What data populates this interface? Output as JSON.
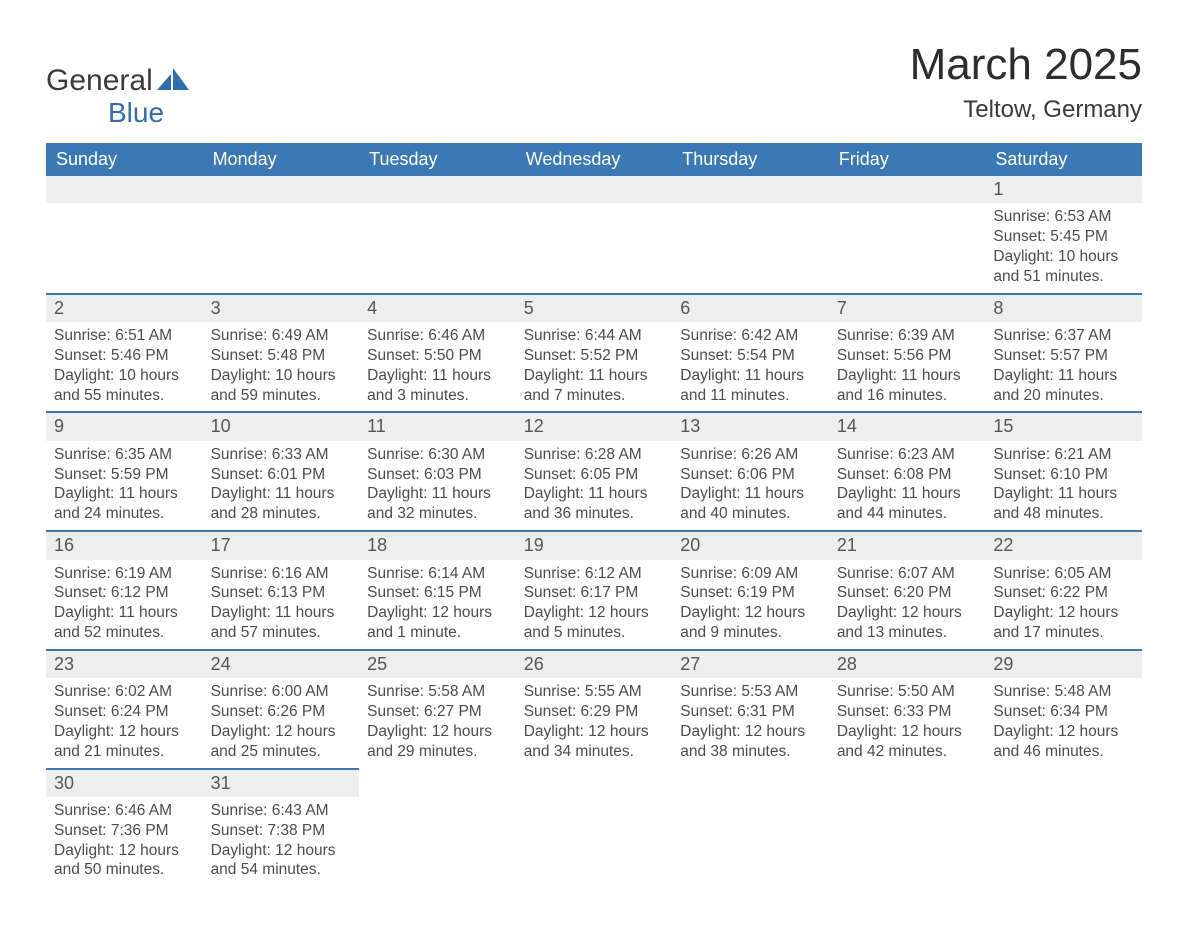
{
  "logo": {
    "word1": "General",
    "word2": "Blue"
  },
  "title": "March 2025",
  "location": "Teltow, Germany",
  "colors": {
    "header_bg": "#3b78b5",
    "header_text": "#ffffff",
    "daynum_bg": "#eeeeee",
    "row_divider": "#3b78b5",
    "body_text": "#4d4d4d",
    "page_bg": "#ffffff",
    "logo_blue": "#2f6fb0"
  },
  "typography": {
    "title_fontsize": 44,
    "location_fontsize": 24,
    "th_fontsize": 18,
    "cell_fontsize": 15.5
  },
  "columns": [
    "Sunday",
    "Monday",
    "Tuesday",
    "Wednesday",
    "Thursday",
    "Friday",
    "Saturday"
  ],
  "weeks": [
    [
      null,
      null,
      null,
      null,
      null,
      null,
      {
        "n": "1",
        "sunrise": "Sunrise: 6:53 AM",
        "sunset": "Sunset: 5:45 PM",
        "day1": "Daylight: 10 hours",
        "day2": "and 51 minutes."
      }
    ],
    [
      {
        "n": "2",
        "sunrise": "Sunrise: 6:51 AM",
        "sunset": "Sunset: 5:46 PM",
        "day1": "Daylight: 10 hours",
        "day2": "and 55 minutes."
      },
      {
        "n": "3",
        "sunrise": "Sunrise: 6:49 AM",
        "sunset": "Sunset: 5:48 PM",
        "day1": "Daylight: 10 hours",
        "day2": "and 59 minutes."
      },
      {
        "n": "4",
        "sunrise": "Sunrise: 6:46 AM",
        "sunset": "Sunset: 5:50 PM",
        "day1": "Daylight: 11 hours",
        "day2": "and 3 minutes."
      },
      {
        "n": "5",
        "sunrise": "Sunrise: 6:44 AM",
        "sunset": "Sunset: 5:52 PM",
        "day1": "Daylight: 11 hours",
        "day2": "and 7 minutes."
      },
      {
        "n": "6",
        "sunrise": "Sunrise: 6:42 AM",
        "sunset": "Sunset: 5:54 PM",
        "day1": "Daylight: 11 hours",
        "day2": "and 11 minutes."
      },
      {
        "n": "7",
        "sunrise": "Sunrise: 6:39 AM",
        "sunset": "Sunset: 5:56 PM",
        "day1": "Daylight: 11 hours",
        "day2": "and 16 minutes."
      },
      {
        "n": "8",
        "sunrise": "Sunrise: 6:37 AM",
        "sunset": "Sunset: 5:57 PM",
        "day1": "Daylight: 11 hours",
        "day2": "and 20 minutes."
      }
    ],
    [
      {
        "n": "9",
        "sunrise": "Sunrise: 6:35 AM",
        "sunset": "Sunset: 5:59 PM",
        "day1": "Daylight: 11 hours",
        "day2": "and 24 minutes."
      },
      {
        "n": "10",
        "sunrise": "Sunrise: 6:33 AM",
        "sunset": "Sunset: 6:01 PM",
        "day1": "Daylight: 11 hours",
        "day2": "and 28 minutes."
      },
      {
        "n": "11",
        "sunrise": "Sunrise: 6:30 AM",
        "sunset": "Sunset: 6:03 PM",
        "day1": "Daylight: 11 hours",
        "day2": "and 32 minutes."
      },
      {
        "n": "12",
        "sunrise": "Sunrise: 6:28 AM",
        "sunset": "Sunset: 6:05 PM",
        "day1": "Daylight: 11 hours",
        "day2": "and 36 minutes."
      },
      {
        "n": "13",
        "sunrise": "Sunrise: 6:26 AM",
        "sunset": "Sunset: 6:06 PM",
        "day1": "Daylight: 11 hours",
        "day2": "and 40 minutes."
      },
      {
        "n": "14",
        "sunrise": "Sunrise: 6:23 AM",
        "sunset": "Sunset: 6:08 PM",
        "day1": "Daylight: 11 hours",
        "day2": "and 44 minutes."
      },
      {
        "n": "15",
        "sunrise": "Sunrise: 6:21 AM",
        "sunset": "Sunset: 6:10 PM",
        "day1": "Daylight: 11 hours",
        "day2": "and 48 minutes."
      }
    ],
    [
      {
        "n": "16",
        "sunrise": "Sunrise: 6:19 AM",
        "sunset": "Sunset: 6:12 PM",
        "day1": "Daylight: 11 hours",
        "day2": "and 52 minutes."
      },
      {
        "n": "17",
        "sunrise": "Sunrise: 6:16 AM",
        "sunset": "Sunset: 6:13 PM",
        "day1": "Daylight: 11 hours",
        "day2": "and 57 minutes."
      },
      {
        "n": "18",
        "sunrise": "Sunrise: 6:14 AM",
        "sunset": "Sunset: 6:15 PM",
        "day1": "Daylight: 12 hours",
        "day2": "and 1 minute."
      },
      {
        "n": "19",
        "sunrise": "Sunrise: 6:12 AM",
        "sunset": "Sunset: 6:17 PM",
        "day1": "Daylight: 12 hours",
        "day2": "and 5 minutes."
      },
      {
        "n": "20",
        "sunrise": "Sunrise: 6:09 AM",
        "sunset": "Sunset: 6:19 PM",
        "day1": "Daylight: 12 hours",
        "day2": "and 9 minutes."
      },
      {
        "n": "21",
        "sunrise": "Sunrise: 6:07 AM",
        "sunset": "Sunset: 6:20 PM",
        "day1": "Daylight: 12 hours",
        "day2": "and 13 minutes."
      },
      {
        "n": "22",
        "sunrise": "Sunrise: 6:05 AM",
        "sunset": "Sunset: 6:22 PM",
        "day1": "Daylight: 12 hours",
        "day2": "and 17 minutes."
      }
    ],
    [
      {
        "n": "23",
        "sunrise": "Sunrise: 6:02 AM",
        "sunset": "Sunset: 6:24 PM",
        "day1": "Daylight: 12 hours",
        "day2": "and 21 minutes."
      },
      {
        "n": "24",
        "sunrise": "Sunrise: 6:00 AM",
        "sunset": "Sunset: 6:26 PM",
        "day1": "Daylight: 12 hours",
        "day2": "and 25 minutes."
      },
      {
        "n": "25",
        "sunrise": "Sunrise: 5:58 AM",
        "sunset": "Sunset: 6:27 PM",
        "day1": "Daylight: 12 hours",
        "day2": "and 29 minutes."
      },
      {
        "n": "26",
        "sunrise": "Sunrise: 5:55 AM",
        "sunset": "Sunset: 6:29 PM",
        "day1": "Daylight: 12 hours",
        "day2": "and 34 minutes."
      },
      {
        "n": "27",
        "sunrise": "Sunrise: 5:53 AM",
        "sunset": "Sunset: 6:31 PM",
        "day1": "Daylight: 12 hours",
        "day2": "and 38 minutes."
      },
      {
        "n": "28",
        "sunrise": "Sunrise: 5:50 AM",
        "sunset": "Sunset: 6:33 PM",
        "day1": "Daylight: 12 hours",
        "day2": "and 42 minutes."
      },
      {
        "n": "29",
        "sunrise": "Sunrise: 5:48 AM",
        "sunset": "Sunset: 6:34 PM",
        "day1": "Daylight: 12 hours",
        "day2": "and 46 minutes."
      }
    ],
    [
      {
        "n": "30",
        "sunrise": "Sunrise: 6:46 AM",
        "sunset": "Sunset: 7:36 PM",
        "day1": "Daylight: 12 hours",
        "day2": "and 50 minutes."
      },
      {
        "n": "31",
        "sunrise": "Sunrise: 6:43 AM",
        "sunset": "Sunset: 7:38 PM",
        "day1": "Daylight: 12 hours",
        "day2": "and 54 minutes."
      },
      null,
      null,
      null,
      null,
      null
    ]
  ]
}
